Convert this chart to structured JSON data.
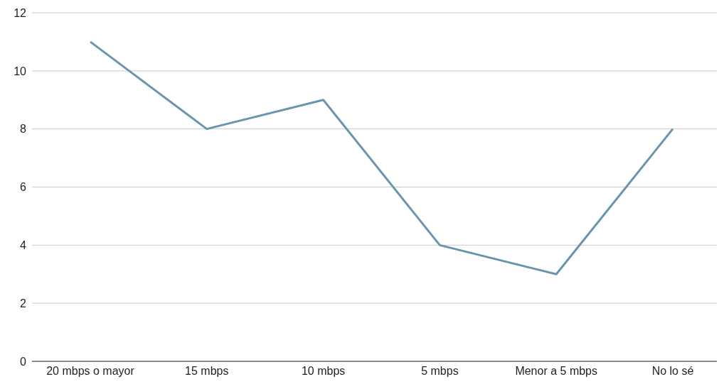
{
  "chart_data": {
    "type": "line",
    "categories": [
      "20 mbps o mayor",
      "15 mbps",
      "10 mbps",
      "5 mbps",
      "Menor a 5 mbps",
      "No lo sé"
    ],
    "series": [
      {
        "color": "#6a95ab",
        "values": [
          11,
          8,
          9,
          4,
          3,
          8
        ]
      }
    ],
    "ylim": [
      0,
      12
    ],
    "yticks": [
      0,
      2,
      4,
      6,
      8,
      10,
      12
    ],
    "grid": "y",
    "marker": "none"
  }
}
